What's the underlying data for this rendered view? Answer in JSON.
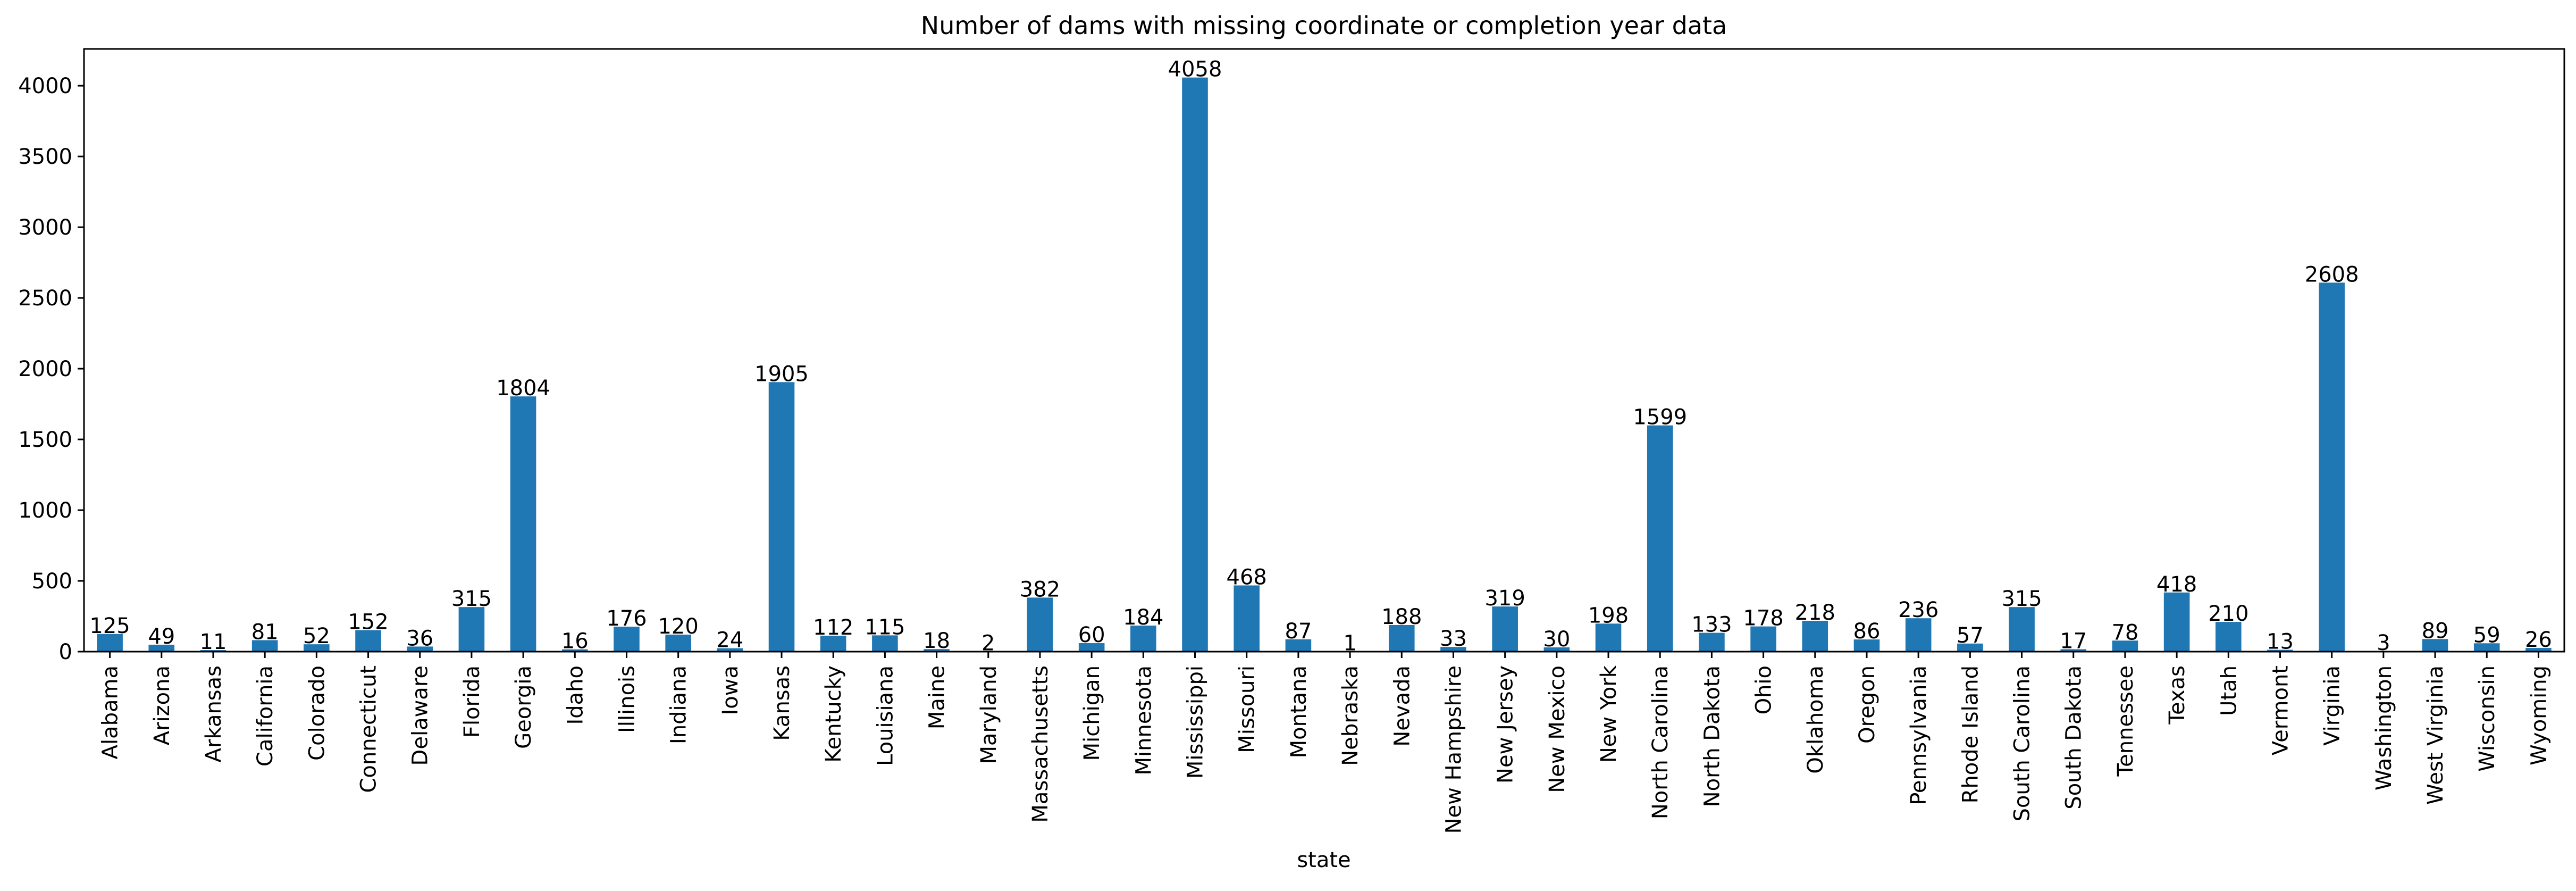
{
  "chart_data": {
    "type": "bar",
    "title": "Number of dams with missing coordinate or completion year data",
    "xlabel": "state",
    "ylabel": "",
    "ylim": [
      0,
      4260
    ],
    "yticks": [
      0,
      500,
      1000,
      1500,
      2000,
      2500,
      3000,
      3500,
      4000
    ],
    "grid": false,
    "bar_color": "#1f77b4",
    "categories": [
      "Alabama",
      "Arizona",
      "Arkansas",
      "California",
      "Colorado",
      "Connecticut",
      "Delaware",
      "Florida",
      "Georgia",
      "Idaho",
      "Illinois",
      "Indiana",
      "Iowa",
      "Kansas",
      "Kentucky",
      "Louisiana",
      "Maine",
      "Maryland",
      "Massachusetts",
      "Michigan",
      "Minnesota",
      "Mississippi",
      "Missouri",
      "Montana",
      "Nebraska",
      "Nevada",
      "New Hampshire",
      "New Jersey",
      "New Mexico",
      "New York",
      "North Carolina",
      "North Dakota",
      "Ohio",
      "Oklahoma",
      "Oregon",
      "Pennsylvania",
      "Rhode Island",
      "South Carolina",
      "South Dakota",
      "Tennessee",
      "Texas",
      "Utah",
      "Vermont",
      "Virginia",
      "Washington",
      "West Virginia",
      "Wisconsin",
      "Wyoming"
    ],
    "values": [
      125,
      49,
      11,
      81,
      52,
      152,
      36,
      315,
      1804,
      16,
      176,
      120,
      24,
      1905,
      112,
      115,
      18,
      2,
      382,
      60,
      184,
      4058,
      468,
      87,
      1,
      188,
      33,
      319,
      30,
      198,
      1599,
      133,
      178,
      218,
      86,
      236,
      57,
      315,
      17,
      78,
      418,
      210,
      13,
      2608,
      3,
      89,
      59,
      26
    ]
  }
}
